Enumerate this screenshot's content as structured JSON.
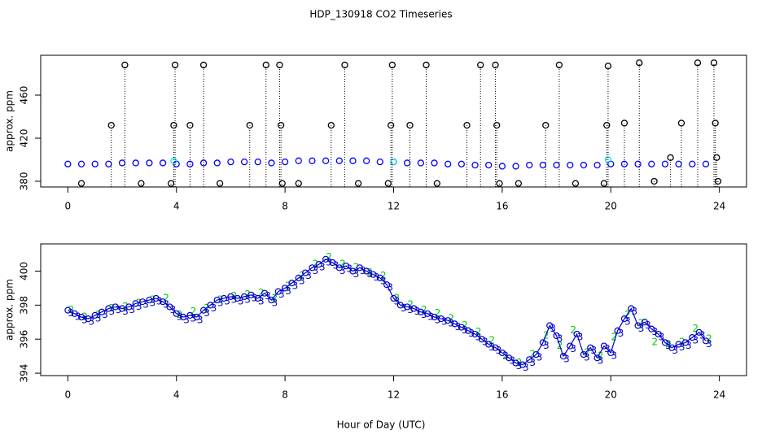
{
  "chart_data": [
    {
      "type": "scatter",
      "title": "HDP_130918  CO2 Timeseries",
      "y_label": "approx. ppm",
      "xlim": [
        -1,
        25
      ],
      "xticks": [
        0,
        4,
        8,
        12,
        16,
        20,
        24
      ],
      "ylim": [
        374.7,
        497
      ],
      "yticks": [
        380,
        420,
        460
      ],
      "series": [
        {
          "color": "#0000ff",
          "style": "circle",
          "x": [
            0,
            0.5,
            1,
            1.5,
            2,
            2.5,
            3,
            3.5,
            4,
            4.5,
            5,
            5.5,
            6,
            6.5,
            7,
            7.5,
            8,
            8.5,
            9,
            9.5,
            10,
            10.5,
            11,
            11.5,
            12,
            12.5,
            13,
            13.5,
            14,
            14.5,
            15,
            15.5,
            16,
            16.5,
            17,
            17.5,
            18,
            18.5,
            19,
            19.5,
            20,
            20.5,
            21,
            21.5,
            22,
            22.5,
            23,
            23.5
          ],
          "values": [
            396,
            396,
            396,
            396,
            397,
            397,
            397,
            397,
            396,
            396,
            397,
            397,
            398,
            398,
            398,
            397,
            398,
            399,
            399,
            399,
            399,
            399,
            399,
            398,
            398,
            397,
            397,
            397,
            396,
            396,
            395,
            395,
            394,
            394,
            395,
            395,
            395,
            395,
            395,
            395,
            396,
            396,
            396,
            396,
            396,
            396,
            396,
            396
          ]
        },
        {
          "color": "#00e5ee",
          "style": "circle",
          "x": [
            3.9,
            12,
            19.9
          ],
          "values": [
            399,
            398,
            400
          ]
        },
        {
          "color": "#000000",
          "style": "stem",
          "x": [
            0.5,
            1.6,
            2.1,
            2.7,
            3.8,
            3.9,
            3.95,
            4.5,
            5.0,
            5.6,
            6.7,
            7.3,
            7.8,
            7.85,
            7.9,
            8.5,
            9.7,
            10.2,
            10.7,
            11.8,
            11.9,
            11.95,
            12.6,
            13.2,
            13.6,
            14.7,
            15.2,
            15.75,
            15.8,
            15.9,
            16.6,
            17.6,
            18.1,
            18.7,
            19.75,
            19.85,
            19.9,
            20.5,
            21.05,
            21.6,
            22.2,
            22.6,
            23.2,
            23.8,
            23.85,
            23.9,
            23.95
          ],
          "values": [
            378,
            432,
            488,
            378,
            378,
            432,
            488,
            432,
            488,
            378,
            432,
            488,
            488,
            432,
            378,
            378,
            432,
            488,
            378,
            378,
            432,
            488,
            432,
            488,
            378,
            432,
            488,
            488,
            432,
            378,
            378,
            432,
            488,
            378,
            378,
            432,
            487,
            434,
            490,
            380,
            402,
            434,
            490,
            490,
            434,
            402,
            380
          ]
        }
      ]
    },
    {
      "type": "line",
      "x_label": "Hour of Day (UTC)",
      "y_label": "approx. ppm",
      "xlim": [
        -1,
        25
      ],
      "xticks": [
        0,
        4,
        8,
        12,
        16,
        20,
        24
      ],
      "ylim": [
        393.86,
        401.6
      ],
      "yticks": [
        394,
        396,
        398,
        400
      ],
      "series": [
        {
          "marker": "2",
          "color": "#00cc00",
          "line": false,
          "x": [
            0,
            0.5,
            1,
            1.5,
            2,
            2.5,
            3,
            3.5,
            4,
            4.5,
            5,
            5.5,
            6,
            6.5,
            7,
            7.5,
            8,
            8.5,
            9,
            9.5,
            10,
            10.5,
            11,
            11.5,
            12,
            12.5,
            13,
            13.5,
            14,
            14.5,
            15,
            15.5,
            16,
            16.5,
            17,
            17.5,
            18,
            18.5,
            19,
            19.5,
            20,
            20.5,
            21,
            21.5,
            22,
            22.5,
            23,
            23.5
          ],
          "values": [
            397.9,
            397.5,
            397.6,
            398.0,
            398.1,
            398.3,
            398.5,
            398.6,
            397.6,
            397.8,
            398.0,
            398.5,
            398.7,
            398.8,
            398.9,
            398.6,
            399.3,
            399.9,
            400.6,
            401.0,
            400.6,
            400.4,
            400.1,
            399.9,
            398.6,
            398.2,
            397.9,
            397.7,
            397.4,
            397.0,
            396.6,
            396.1,
            395.2,
            394.8,
            395.3,
            396.4,
            395.8,
            396.7,
            395.4,
            395.2,
            396.3,
            397.6,
            397.1,
            396.0,
            395.9,
            396.0,
            396.8,
            396.2
          ]
        },
        {
          "marker": "3",
          "color": "#0000cc",
          "line": true,
          "x": [
            0,
            0.25,
            0.5,
            0.75,
            1,
            1.25,
            1.5,
            1.75,
            2,
            2.25,
            2.5,
            2.75,
            3,
            3.25,
            3.5,
            3.75,
            4,
            4.25,
            4.5,
            4.75,
            5,
            5.25,
            5.5,
            5.75,
            6,
            6.25,
            6.5,
            6.75,
            7,
            7.25,
            7.5,
            7.75,
            8,
            8.25,
            8.5,
            8.75,
            9,
            9.25,
            9.5,
            9.75,
            10,
            10.25,
            10.5,
            10.75,
            11,
            11.25,
            11.5,
            11.75,
            12,
            12.25,
            12.5,
            12.75,
            13,
            13.25,
            13.5,
            13.75,
            14,
            14.25,
            14.5,
            14.75,
            15,
            15.25,
            15.5,
            15.75,
            16,
            16.25,
            16.5,
            16.75,
            17,
            17.25,
            17.5,
            17.75,
            18,
            18.25,
            18.5,
            18.75,
            19,
            19.25,
            19.5,
            19.75,
            20,
            20.25,
            20.5,
            20.75,
            21,
            21.25,
            21.5,
            21.75,
            22,
            22.25,
            22.5,
            22.75,
            23,
            23.25,
            23.5
          ],
          "values": [
            397.7,
            397.5,
            397.3,
            397.2,
            397.4,
            397.6,
            397.8,
            397.9,
            397.8,
            397.9,
            398.1,
            398.2,
            398.3,
            398.4,
            398.2,
            397.9,
            397.5,
            397.3,
            397.4,
            397.3,
            397.7,
            398.0,
            398.3,
            398.4,
            398.5,
            398.4,
            398.5,
            398.6,
            398.4,
            398.7,
            398.3,
            398.8,
            399.0,
            399.3,
            399.6,
            399.9,
            400.2,
            400.4,
            400.7,
            400.5,
            400.2,
            400.3,
            400.0,
            400.2,
            400.0,
            399.8,
            399.6,
            399.2,
            398.4,
            398.0,
            397.9,
            397.8,
            397.6,
            397.5,
            397.3,
            397.2,
            397.1,
            396.9,
            396.7,
            396.5,
            396.3,
            396.0,
            395.7,
            395.5,
            395.2,
            394.9,
            394.6,
            394.5,
            394.8,
            395.1,
            395.8,
            396.8,
            396.2,
            395.0,
            395.6,
            396.3,
            395.1,
            395.5,
            394.9,
            395.6,
            395.2,
            396.5,
            397.2,
            397.8,
            396.8,
            397.0,
            396.6,
            396.3,
            395.8,
            395.5,
            395.7,
            395.8,
            396.1,
            396.4,
            395.9
          ]
        }
      ]
    }
  ]
}
